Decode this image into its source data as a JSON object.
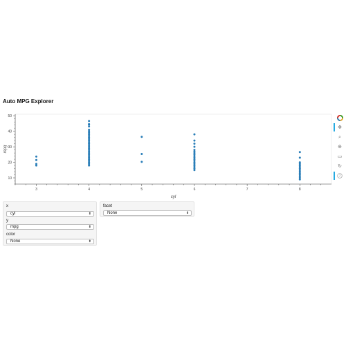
{
  "app": {
    "title": "Auto MPG Explorer"
  },
  "toolbar": {
    "tools": [
      "bokeh-logo-icon",
      "pan-icon",
      "box-zoom-icon",
      "wheel-zoom-icon",
      "save-icon",
      "reset-icon",
      "help-icon"
    ]
  },
  "controls": {
    "x": {
      "label": "x",
      "value": "cyl"
    },
    "y": {
      "label": "y",
      "value": "mpg"
    },
    "color": {
      "label": "color",
      "value": "None"
    },
    "facet": {
      "label": "facet",
      "value": "None"
    }
  },
  "colors": {
    "point": "#1f77b4",
    "accent": "#26aae1"
  },
  "chart_data": {
    "type": "scatter",
    "title": "",
    "xlabel": "cyl",
    "ylabel": "mpg",
    "xlim": [
      2.6,
      8.6
    ],
    "ylim": [
      6,
      51
    ],
    "xticks": [
      3,
      4,
      5,
      6,
      7,
      8
    ],
    "yticks": [
      10,
      20,
      30,
      40,
      50
    ],
    "series": [
      {
        "x": 3,
        "values": [
          18,
          19,
          21.5,
          23.7
        ]
      },
      {
        "x": 4,
        "values": [
          18,
          19,
          20,
          21,
          22,
          23,
          24,
          25,
          26,
          27,
          28,
          29,
          30,
          31,
          32,
          33,
          34,
          35,
          36,
          37,
          38,
          39,
          40,
          41,
          43.1,
          44.3,
          44.6,
          46.6
        ]
      },
      {
        "x": 5,
        "values": [
          20.3,
          25.4,
          36.4
        ]
      },
      {
        "x": 6,
        "values": [
          15,
          16,
          17,
          18,
          19,
          20,
          21,
          22,
          23,
          24,
          25,
          26,
          27,
          28,
          30,
          32,
          34,
          38
        ]
      },
      {
        "x": 8,
        "values": [
          9,
          10,
          11,
          12,
          13,
          14,
          15,
          16,
          17,
          18,
          19,
          20,
          23,
          26.6
        ]
      }
    ]
  }
}
